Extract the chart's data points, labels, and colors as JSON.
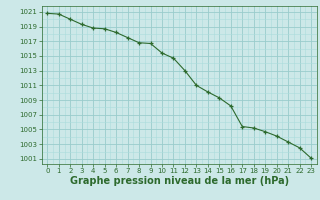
{
  "x": [
    0,
    1,
    2,
    3,
    4,
    5,
    6,
    7,
    8,
    9,
    10,
    11,
    12,
    13,
    14,
    15,
    16,
    17,
    18,
    19,
    20,
    21,
    22,
    23
  ],
  "y": [
    1020.8,
    1020.7,
    1020.0,
    1019.3,
    1018.8,
    1018.7,
    1018.2,
    1017.5,
    1016.8,
    1016.7,
    1015.4,
    1014.7,
    1013.0,
    1011.0,
    1010.1,
    1009.3,
    1008.2,
    1005.4,
    1005.2,
    1004.7,
    1004.1,
    1003.3,
    1002.5,
    1001.1
  ],
  "line_color": "#2d6a2d",
  "bg_color": "#cce8e8",
  "grid_major_color": "#99cccc",
  "grid_minor_color": "#aadddd",
  "xlabel": "Graphe pression niveau de la mer (hPa)",
  "xlabel_fontsize": 7,
  "ylabel_ticks": [
    1001,
    1003,
    1005,
    1007,
    1009,
    1011,
    1013,
    1015,
    1017,
    1019,
    1021
  ],
  "ylim": [
    1000.3,
    1021.8
  ],
  "xlim": [
    -0.5,
    23.5
  ],
  "xticks": [
    0,
    1,
    2,
    3,
    4,
    5,
    6,
    7,
    8,
    9,
    10,
    11,
    12,
    13,
    14,
    15,
    16,
    17,
    18,
    19,
    20,
    21,
    22,
    23
  ],
  "tick_fontsize": 5,
  "tick_color": "#2d6a2d",
  "spine_color": "#2d6a2d"
}
